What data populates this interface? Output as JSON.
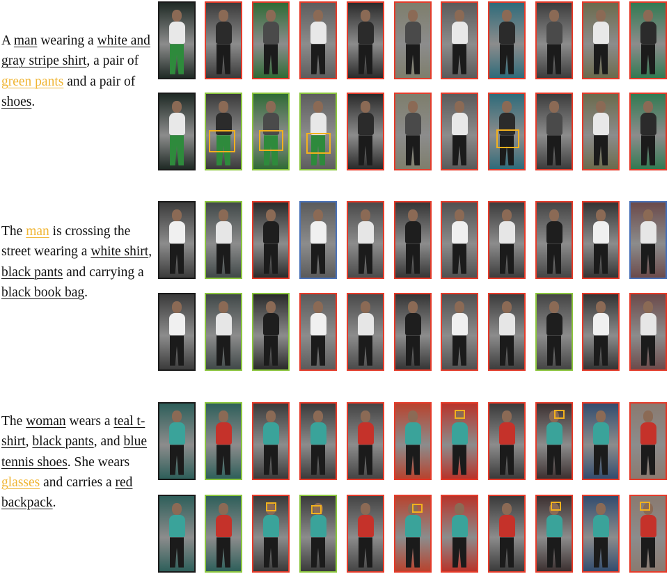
{
  "queries": [
    {
      "text": [
        {
          "t": "A "
        },
        {
          "t": "man",
          "u": true
        },
        {
          "t": " wearing a "
        },
        {
          "t": "white and gray stripe shirt",
          "u": true
        },
        {
          "t": ", a pair of "
        },
        {
          "t": "green pants",
          "u": true,
          "hl": true
        },
        {
          "t": " and a pair of "
        },
        {
          "t": "shoes",
          "u": true
        },
        {
          "t": "."
        }
      ],
      "rows": [
        [
          "black",
          "red",
          "red",
          "red",
          "red",
          "red",
          "red",
          "red",
          "red",
          "red",
          "red"
        ],
        [
          "black",
          "green",
          "green",
          "green",
          "red",
          "red",
          "red",
          "red",
          "red",
          "red",
          "red"
        ]
      ],
      "colors": [
        "#1f2a25",
        "#3a3a3a",
        "#2f6b35",
        "#5d5d5d",
        "#2a2a2a",
        "#7e7e6c",
        "#5a5a5a",
        "#2e6b7a",
        "#3c3c3c",
        "#6b6a4c",
        "#327a52"
      ]
    },
    {
      "text": [
        {
          "t": "The "
        },
        {
          "t": "man",
          "u": true,
          "hl": true
        },
        {
          "t": " is crossing the street wearing a "
        },
        {
          "t": "white shirt",
          "u": true
        },
        {
          "t": ", "
        },
        {
          "t": "black pants",
          "u": true
        },
        {
          "t": " and carrying a "
        },
        {
          "t": "black book bag",
          "u": true
        },
        {
          "t": "."
        }
      ],
      "rows": [
        [
          "black",
          "green",
          "red",
          "blue",
          "red",
          "red",
          "red",
          "red",
          "red",
          "red",
          "blue"
        ],
        [
          "black",
          "green",
          "green",
          "red",
          "red",
          "red",
          "red",
          "red",
          "green",
          "red",
          "red"
        ]
      ],
      "colors": [
        "#3b3b3b",
        "#404848",
        "#2a2a2a",
        "#5b5b5b",
        "#4a4a4a",
        "#353535",
        "#505050",
        "#3c3c3c",
        "#444444",
        "#333333",
        "#6b4a4a"
      ]
    },
    {
      "text": [
        {
          "t": "The "
        },
        {
          "t": "woman",
          "u": true
        },
        {
          "t": " wears a "
        },
        {
          "t": "teal t-shirt",
          "u": true
        },
        {
          "t": ", "
        },
        {
          "t": "black pants",
          "u": true
        },
        {
          "t": ", and "
        },
        {
          "t": "blue tennis shoes",
          "u": true
        },
        {
          "t": ". She wears "
        },
        {
          "t": "glasses",
          "u": true,
          "hl": true
        },
        {
          "t": " and carries a "
        },
        {
          "t": "red backpack",
          "u": true
        },
        {
          "t": "."
        }
      ],
      "rows": [
        [
          "black",
          "green",
          "red",
          "red",
          "red",
          "red",
          "red",
          "red",
          "red",
          "red",
          "red"
        ],
        [
          "black",
          "green",
          "red",
          "green",
          "red",
          "red",
          "red",
          "red",
          "red",
          "red",
          "red"
        ]
      ],
      "colors": [
        "#2e5f5a",
        "#2e5f5a",
        "#3a3a3a",
        "#3a3a3a",
        "#444",
        "#b8432e",
        "#b8332a",
        "#3a3a3a",
        "#3c3030",
        "#324c6e",
        "#8a7a70"
      ]
    }
  ]
}
